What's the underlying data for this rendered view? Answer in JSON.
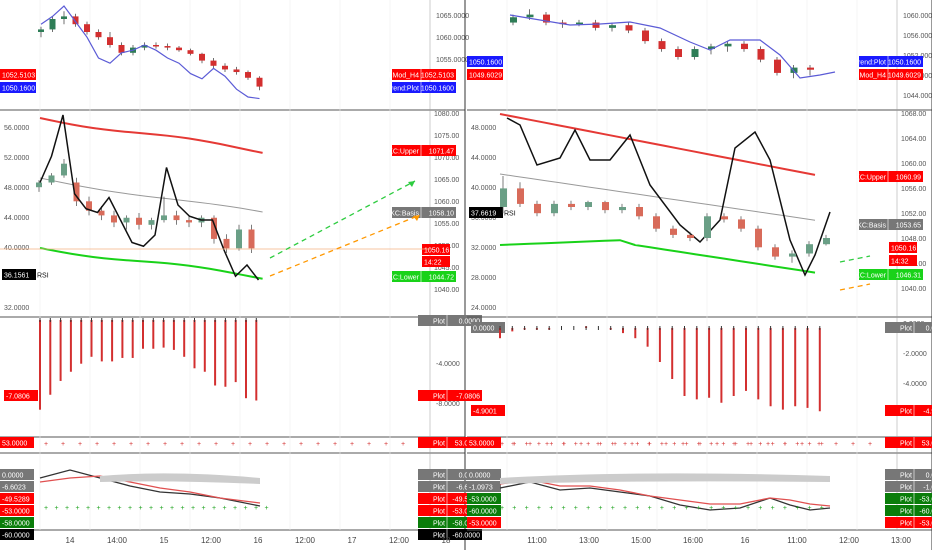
{
  "colors": {
    "up": "#2e7d57",
    "down": "#d32f2f",
    "ztrend": "#5b5bd6",
    "kc_upper": "#e53935",
    "kc_basis": "#999999",
    "kc_lower": "#19d219",
    "rsi": "#111111",
    "forecast_up": "#2ecc40",
    "forecast_down": "#ff9800",
    "label_red": "#ff0000",
    "label_blue": "#1a1aff",
    "label_black": "#000000",
    "label_gray": "#777777",
    "label_green": "#19d219",
    "label_darkgreen": "#0a7d0a"
  },
  "left": {
    "pane1": {
      "ticks": [
        "1065.0000",
        "1060.0000",
        "1055.0000"
      ],
      "labels": [
        {
          "name": "ztrend-mod-h4",
          "text": "ZTrend:Mod_H4",
          "value": "1052.5103",
          "color": "red"
        },
        {
          "name": "ztrend-plot",
          "text": "ZTrend:Plot",
          "value": "1050.1600",
          "color": "blue"
        }
      ],
      "left_labels": [
        {
          "value": "1052.5103",
          "color": "red"
        },
        {
          "value": "1050.1600",
          "color": "blue"
        }
      ]
    },
    "pane2": {
      "left_ticks": [
        "56.0000",
        "52.0000",
        "48.0000",
        "44.0000",
        "40.0000",
        "36.0000",
        "32.0000"
      ],
      "right_ticks": [
        "1080.00",
        "1075.00",
        "1070.00",
        "1065.00",
        "1060.00",
        "1055.00",
        "1050.00",
        "1045.00",
        "1040.00"
      ],
      "rsi_label": "36.1561",
      "rsi_text": "RSI",
      "labels": [
        {
          "name": "kc-upper",
          "text": "KC:Upper",
          "value": "1071.47",
          "color": "red"
        },
        {
          "name": "kc-basis",
          "text": "KC:Basis",
          "value": "1058.10",
          "color": "gray"
        },
        {
          "name": "kc-lower",
          "text": "KC:Lower",
          "value": "1044.72",
          "color": "green"
        }
      ],
      "price_tag": "1050.16",
      "time_tag": "14:22"
    },
    "pane3": {
      "ticks": [
        "0.0000",
        "-4.0000",
        "-8.0000"
      ],
      "labels": [
        {
          "text": "Plot",
          "value": "0.0000",
          "color": "gray"
        },
        {
          "text": "Plot",
          "value": "-7.0806",
          "color": "red"
        }
      ],
      "left_labels": [
        {
          "value": "-7.0806",
          "color": "red"
        }
      ]
    },
    "pane4": {
      "labels": [
        {
          "text": "Plot",
          "value": "53.0000",
          "color": "red"
        }
      ],
      "left_labels": [
        {
          "value": "53.0000",
          "color": "red"
        }
      ]
    },
    "pane5": {
      "labels": [
        {
          "text": "Plot",
          "value": "0.0000",
          "color": "gray"
        },
        {
          "text": "Plot",
          "value": "-6.6023",
          "color": "gray"
        },
        {
          "text": "Plot",
          "value": "-49.5289",
          "color": "red"
        },
        {
          "text": "Plot",
          "value": "-53.0000",
          "color": "red"
        },
        {
          "text": "Plot",
          "value": "-58.0000",
          "color": "darkgreen"
        },
        {
          "text": "Plot",
          "value": "-60.0000",
          "color": "black"
        }
      ],
      "left_labels": [
        {
          "value": "0.0000",
          "color": "gray"
        },
        {
          "value": "-6.6023",
          "color": "gray"
        },
        {
          "value": "-49.5289",
          "color": "red"
        },
        {
          "value": "-53.0000",
          "color": "red"
        },
        {
          "value": "-58.0000",
          "color": "darkgreen"
        },
        {
          "value": "-60.0000",
          "color": "black"
        }
      ]
    },
    "time_axis": [
      "14",
      "14:00",
      "15",
      "12:00",
      "16",
      "12:00",
      "17",
      "12:00",
      "18"
    ]
  },
  "right": {
    "pane1": {
      "ticks": [
        "1060.0000",
        "1056.0000",
        "1052.0000",
        "1048.0000",
        "1044.0000"
      ],
      "labels": [
        {
          "name": "ztrend-plot",
          "text": "ZTrend:Plot",
          "value": "1050.1600",
          "color": "blue"
        },
        {
          "name": "ztrend-mod-h4",
          "text": "ZTrend:Mod_H4",
          "value": "1049.6029",
          "color": "red"
        }
      ],
      "left_labels": [
        {
          "value": "1050.1600",
          "color": "blue"
        },
        {
          "value": "1049.6029",
          "color": "red"
        }
      ]
    },
    "pane2": {
      "left_ticks": [
        "48.0000",
        "44.0000",
        "40.0000",
        "36.0000",
        "32.0000",
        "28.0000",
        "24.0000"
      ],
      "right_ticks": [
        "1068.00",
        "1064.00",
        "1060.00",
        "1056.00",
        "1052.00",
        "1048.00",
        "1044.00",
        "1040.00"
      ],
      "rsi_label": "37.6619",
      "rsi_text": "RSI",
      "labels": [
        {
          "name": "kc-upper",
          "text": "KC:Upper",
          "value": "1060.99",
          "color": "red"
        },
        {
          "name": "kc-basis",
          "text": "KC:Basis",
          "value": "1053.65",
          "color": "gray"
        },
        {
          "name": "kc-lower",
          "text": "KC:Lower",
          "value": "1046.31",
          "color": "green"
        }
      ],
      "price_tag": "1050.16",
      "time_tag": "14:32"
    },
    "pane3": {
      "ticks": [
        "0.0000",
        "-2.0000",
        "-4.0000",
        "-6.0000"
      ],
      "labels": [
        {
          "text": "Plot",
          "value": "0.0000",
          "color": "gray"
        },
        {
          "text": "Plot",
          "value": "-4.9001",
          "color": "red"
        }
      ],
      "left_labels": [
        {
          "value": "0.0000",
          "color": "gray"
        },
        {
          "value": "-4.9001",
          "color": "red"
        }
      ]
    },
    "pane4": {
      "labels": [
        {
          "text": "Plot",
          "value": "53.0000",
          "color": "red"
        }
      ],
      "left_labels": [
        {
          "value": "53.0000",
          "color": "red"
        }
      ]
    },
    "pane5": {
      "labels": [
        {
          "text": "Plot",
          "value": "0.0000",
          "color": "gray"
        },
        {
          "text": "Plot",
          "value": "-1.0973",
          "color": "gray"
        },
        {
          "text": "Plot",
          "value": "-53.0000",
          "color": "darkgreen"
        },
        {
          "text": "Plot",
          "value": "-60.0000",
          "color": "darkgreen"
        },
        {
          "text": "Plot",
          "value": "-53.0000",
          "color": "red"
        }
      ],
      "left_labels": [
        {
          "value": "0.0000",
          "color": "gray"
        },
        {
          "value": "-1.0973",
          "color": "gray"
        },
        {
          "value": "-53.0000",
          "color": "darkgreen"
        },
        {
          "value": "-60.0000",
          "color": "darkgreen"
        },
        {
          "value": "-53.0000",
          "color": "red"
        }
      ]
    },
    "time_axis": [
      "11:00",
      "13:00",
      "15:00",
      "16:00",
      "16",
      "11:00",
      "12:00",
      "13:00"
    ]
  },
  "series": {
    "left_candles": [
      [
        1063,
        1064,
        1062,
        1063.5
      ],
      [
        1063.5,
        1066,
        1063,
        1065.5
      ],
      [
        1065.5,
        1067,
        1064.5,
        1066
      ],
      [
        1066,
        1066.5,
        1064,
        1064.5
      ],
      [
        1064.5,
        1065,
        1062.5,
        1063
      ],
      [
        1063,
        1063.5,
        1061.5,
        1062
      ],
      [
        1062,
        1063,
        1060,
        1060.5
      ],
      [
        1060.5,
        1061,
        1058.5,
        1059
      ],
      [
        1059,
        1060.5,
        1058.5,
        1060
      ],
      [
        1060,
        1061,
        1059.5,
        1060.5
      ],
      [
        1060.5,
        1061,
        1059.8,
        1060.3
      ],
      [
        1060.3,
        1060.8,
        1059.5,
        1060
      ],
      [
        1060,
        1060.3,
        1059.2,
        1059.5
      ],
      [
        1059.5,
        1059.8,
        1058.5,
        1058.8
      ],
      [
        1058.8,
        1059,
        1057,
        1057.5
      ],
      [
        1057.5,
        1058,
        1056,
        1056.5
      ],
      [
        1056.5,
        1057,
        1055.3,
        1055.8
      ],
      [
        1055.8,
        1056.3,
        1054.8,
        1055.3
      ],
      [
        1055.3,
        1055.6,
        1053.8,
        1054.2
      ],
      [
        1054.2,
        1054.5,
        1051.8,
        1052.5
      ]
    ],
    "left_ztrend": [
      1064.5,
      1066,
      1068,
      1065,
      1062,
      1058,
      1057,
      1059,
      1059.5,
      1060.5,
      1059.5,
      1058,
      1057,
      1055,
      1054,
      1056,
      1054.5,
      1052,
      1050.5,
      1050.2
    ],
    "left_kc_candles": [
      [
        1064,
        1065.5,
        1063,
        1065
      ],
      [
        1065,
        1067,
        1064.5,
        1066.5
      ],
      [
        1066.5,
        1070,
        1066,
        1069
      ],
      [
        1065,
        1066,
        1060,
        1061
      ],
      [
        1061,
        1062,
        1058,
        1059
      ],
      [
        1059,
        1060,
        1057,
        1058
      ],
      [
        1058,
        1059,
        1055.5,
        1056.5
      ],
      [
        1056.5,
        1058,
        1055,
        1057.5
      ],
      [
        1057.5,
        1058.5,
        1055,
        1056
      ],
      [
        1056,
        1057.5,
        1055,
        1057
      ],
      [
        1057,
        1062,
        1056.5,
        1058
      ],
      [
        1058,
        1059,
        1056,
        1057
      ],
      [
        1057,
        1058,
        1055.5,
        1056.5
      ],
      [
        1056.5,
        1058,
        1055.5,
        1057.5
      ],
      [
        1057.5,
        1058,
        1052,
        1053
      ],
      [
        1053,
        1054,
        1050,
        1051
      ],
      [
        1051,
        1056,
        1050.5,
        1055
      ],
      [
        1055,
        1056,
        1050,
        1051
      ]
    ],
    "left_rsi": [
      49,
      52.5,
      58,
      47.5,
      45.5,
      45,
      47,
      44,
      41,
      40.5,
      42,
      51,
      46,
      44.5,
      44,
      44,
      40,
      36.5,
      38,
      36
    ]
  }
}
